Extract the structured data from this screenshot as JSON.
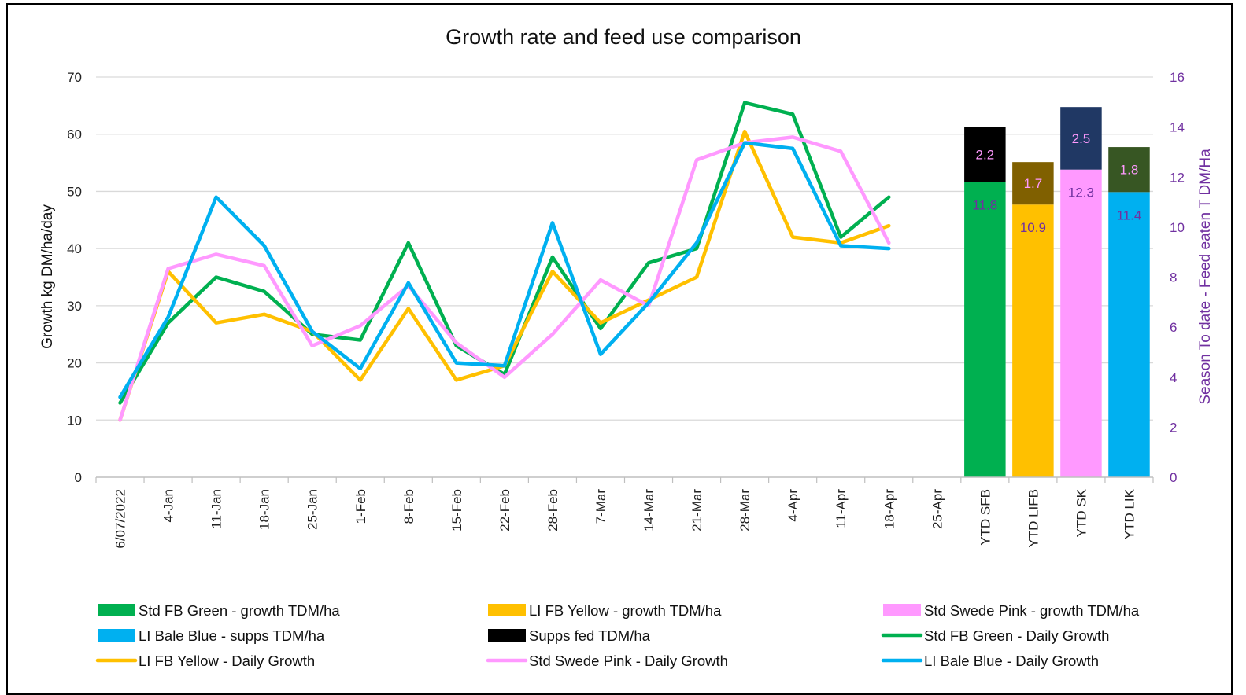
{
  "chart_data": {
    "type": "line",
    "title": "Growth rate and feed use comparison",
    "ylabel": "Growth kg DM/ha/day",
    "y2label": "Season To date - Feed eaten T DM/Ha",
    "ylim": [
      0,
      70
    ],
    "y2lim": [
      0,
      16
    ],
    "yticks": [
      "0",
      "10",
      "20",
      "30",
      "40",
      "50",
      "60",
      "70"
    ],
    "y2ticks": [
      "0",
      "2",
      "4",
      "6",
      "8",
      "10",
      "12",
      "14",
      "16"
    ],
    "grid": true,
    "legend_position": "bottom",
    "categories": [
      "6/07/2022",
      "4-Jan",
      "11-Jan",
      "18-Jan",
      "25-Jan",
      "1-Feb",
      "8-Feb",
      "15-Feb",
      "22-Feb",
      "28-Feb",
      "7-Mar",
      "14-Mar",
      "21-Mar",
      "28-Mar",
      "4-Apr",
      "11-Apr",
      "18-Apr",
      "25-Apr",
      "YTD SFB",
      "YTD LIFB",
      "YTD SK",
      "YTD LIK"
    ],
    "line_series": [
      {
        "name": "Std FB Green - Daily Growth",
        "color": "#00b050",
        "values": [
          13,
          27,
          35,
          32.5,
          25,
          24,
          41,
          23,
          18,
          38.5,
          26,
          37.5,
          40,
          65.5,
          63.5,
          42,
          49
        ]
      },
      {
        "name": "LI FB Yellow - Daily Growth",
        "color": "#ffc000",
        "values": [
          10,
          36,
          27,
          28.5,
          25.5,
          17,
          29.5,
          17,
          19.5,
          36,
          27,
          31,
          35,
          60.5,
          42,
          41,
          44
        ]
      },
      {
        "name": "Std Swede Pink - Daily Growth",
        "color": "#ff99ff",
        "values": [
          10,
          36.5,
          39,
          37,
          23,
          26.5,
          33.5,
          23.5,
          17.5,
          25,
          34.5,
          30,
          55.5,
          58.5,
          59.5,
          57,
          41
        ]
      },
      {
        "name": "LI Bale Blue - Daily Growth",
        "color": "#00b0f0",
        "values": [
          14,
          28,
          49,
          40.5,
          25.5,
          19,
          34,
          20,
          19.5,
          44.5,
          21.5,
          30.5,
          41,
          58.5,
          57.5,
          40.5,
          40
        ]
      }
    ],
    "bar_series": [
      {
        "category": "YTD SFB",
        "name": "Std FB Green - growth TDM/ha",
        "growth": 11.8,
        "growth_label": "11.8",
        "growth_color": "#00b050",
        "supps": 2.2,
        "supps_label": "2.2",
        "supps_color": "#000000"
      },
      {
        "category": "YTD LIFB",
        "name": "LI FB Yellow - growth TDM/ha",
        "growth": 10.9,
        "growth_label": "10.9",
        "growth_color": "#ffc000",
        "supps": 1.7,
        "supps_label": "1.7",
        "supps_color": "#806000"
      },
      {
        "category": "YTD SK",
        "name": "Std Swede Pink - growth TDM/ha",
        "growth": 12.3,
        "growth_label": "12.3",
        "growth_color": "#ff99ff",
        "supps": 2.5,
        "supps_label": "2.5",
        "supps_color": "#203864"
      },
      {
        "category": "YTD LIK",
        "name": "LI Bale Blue - supps TDM/ha",
        "growth": 11.4,
        "growth_label": "11.4",
        "growth_color": "#00b0f0",
        "supps": 1.8,
        "supps_label": "1.8",
        "supps_color": "#375623"
      }
    ],
    "legend": [
      {
        "label": "Std FB Green - growth TDM/ha",
        "color": "#00b050",
        "kind": "box"
      },
      {
        "label": "LI FB Yellow - growth TDM/ha",
        "color": "#ffc000",
        "kind": "box"
      },
      {
        "label": "Std Swede Pink - growth TDM/ha",
        "color": "#ff99ff",
        "kind": "box"
      },
      {
        "label": "LI Bale Blue - supps TDM/ha",
        "color": "#00b0f0",
        "kind": "box"
      },
      {
        "label": "Supps fed TDM/ha",
        "color": "#000000",
        "kind": "box"
      },
      {
        "label": "Std FB Green - Daily Growth",
        "color": "#00b050",
        "kind": "line"
      },
      {
        "label": "LI FB Yellow - Daily Growth",
        "color": "#ffc000",
        "kind": "line"
      },
      {
        "label": "Std Swede Pink - Daily Growth",
        "color": "#ff99ff",
        "kind": "line"
      },
      {
        "label": "LI Bale Blue - Daily Growth",
        "color": "#00b0f0",
        "kind": "line"
      }
    ]
  }
}
